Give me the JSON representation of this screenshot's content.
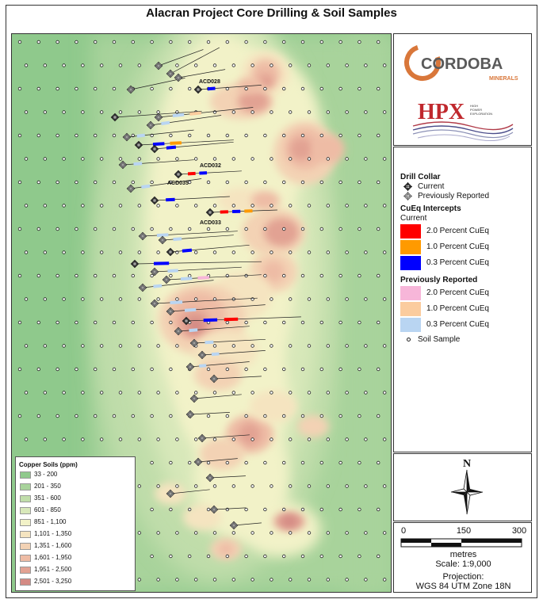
{
  "title": "Alacran Project Core Drilling & Soil Samples",
  "logos": {
    "cordoba_main": "CORDOBA",
    "cordoba_sub": "MINERALS",
    "hpx_main": "HPX",
    "hpx_sub_1": "HIGH",
    "hpx_sub_2": "POWER",
    "hpx_sub_3": "EXPLORATION"
  },
  "legend": {
    "drill_collar_title": "Drill Collar",
    "current": "Current",
    "previously_reported": "Previously Reported",
    "intercepts_title": "CuEq Intercepts",
    "current_sub": "Current",
    "current_items": [
      {
        "label": "2.0 Percent CuEq",
        "color": "#ff0000"
      },
      {
        "label": "1.0 Percent CuEq",
        "color": "#ff9a00"
      },
      {
        "label": "0.3 Percent CuEq",
        "color": "#0000ff"
      }
    ],
    "prev_sub": "Previously Reported",
    "prev_items": [
      {
        "label": "2.0 Percent CuEq",
        "color": "#f7b6d9"
      },
      {
        "label": "1.0 Percent CuEq",
        "color": "#fbcc9e"
      },
      {
        "label": "0.3 Percent CuEq",
        "color": "#b9d5f2"
      }
    ],
    "soil_sample": "Soil Sample"
  },
  "north": "N",
  "scale": {
    "ticks": [
      "0",
      "150",
      "300"
    ],
    "unit": "metres",
    "ratio": "Scale: 1:9,000",
    "projection_title": "Projection:",
    "projection": "WGS 84 UTM Zone 18N"
  },
  "soil_legend": {
    "title": "Copper Soils (ppm)",
    "classes": [
      {
        "label": "33 - 200",
        "color": "#8fc98c"
      },
      {
        "label": "201 - 350",
        "color": "#a8d39b"
      },
      {
        "label": "351 - 600",
        "color": "#c0ddaa"
      },
      {
        "label": "601 - 850",
        "color": "#d8e8ba"
      },
      {
        "label": "851 - 1,100",
        "color": "#f2f2c8"
      },
      {
        "label": "1,101 - 1,350",
        "color": "#f5e4c0"
      },
      {
        "label": "1,351 - 1,600",
        "color": "#f3d2b4"
      },
      {
        "label": "1,601 - 1,950",
        "color": "#eebca5"
      },
      {
        "label": "1,951 - 2,500",
        "color": "#e2a293"
      },
      {
        "label": "2,501 - 3,250",
        "color": "#d48a84"
      }
    ]
  },
  "drill_labels": [
    "ACD028",
    "ACD032",
    "ACD035",
    "ACD033"
  ],
  "colors": {
    "current_collar": "#333333",
    "prev_collar": "#888888",
    "trace": "#222222",
    "soil_dot_fill": "#ffffff"
  }
}
